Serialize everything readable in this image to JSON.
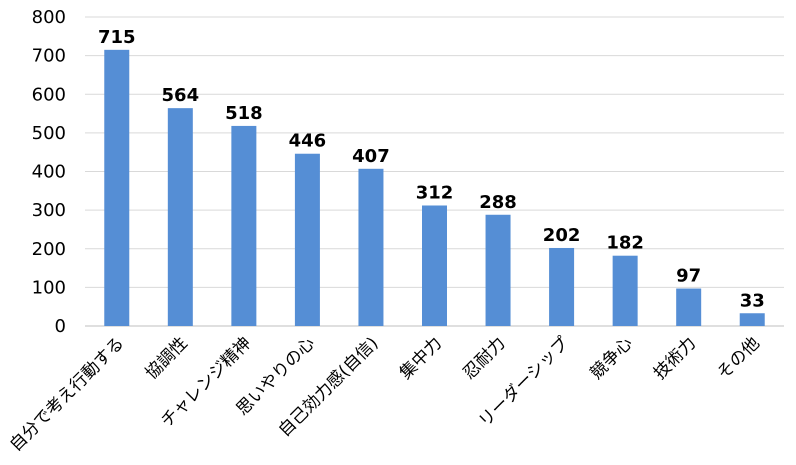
{
  "chart_data": {
    "type": "bar",
    "categories": [
      "自分で考え行動する",
      "協調性",
      "チャレンジ精神",
      "思いやりの心",
      "自己効力感(自信)",
      "集中力",
      "忍耐力",
      "リーダーシップ",
      "競争心",
      "技術力",
      "その他"
    ],
    "values": [
      715,
      564,
      518,
      446,
      407,
      312,
      288,
      202,
      182,
      97,
      33
    ],
    "ylim": [
      0,
      800
    ],
    "yticks": [
      0,
      100,
      200,
      300,
      400,
      500,
      600,
      700,
      800
    ],
    "grid": true,
    "legend": "none",
    "title": "",
    "xlabel": "",
    "ylabel": "",
    "colors": {
      "bar": "#558ED5",
      "grid": "#D9D9D9",
      "axis": "#BFBFBF"
    }
  }
}
